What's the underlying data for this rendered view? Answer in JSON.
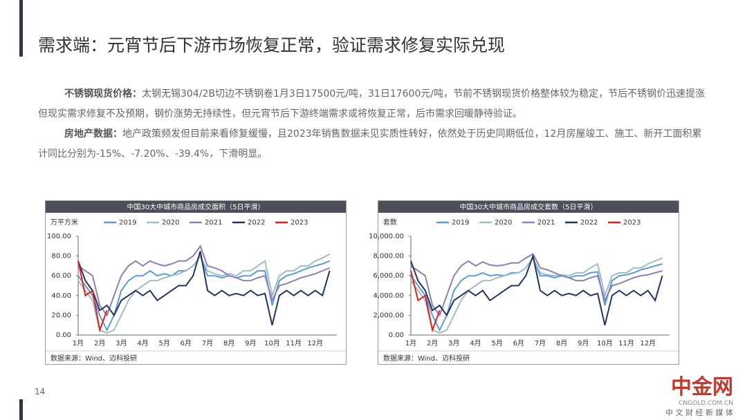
{
  "header": {
    "title": "需求端：元宵节后下游市场恢复正常，验证需求修复实际兑现"
  },
  "paragraphs": [
    {
      "lead": "不锈钢现货价格：",
      "text": "太钢无锡304/2B切边不锈钢卷1月3日17500元/吨，31日17600元/吨，节前不锈钢现货价格整体较为稳定，节后不锈钢价迅速提涨但现实需求修复不及预期，钢价涨势无持续性，但元宵节后下游终端需求或将恢复正常，后市需求回暖静待验证。"
    },
    {
      "lead": "房地产数据：",
      "text": "地产政策频发但目前来看修复缓慢，且2023年销售数据未见实质性转好，依然处于历史同期低位，12月房屋竣工、施工、新开工面积累计同比分别为-15%、-7.20%、-39.4%，下滑明显。"
    }
  ],
  "chart_data": [
    {
      "type": "line",
      "title": "中国30大中城市商品房成交面积（5日平滑）",
      "y_label": "万平方米",
      "source": "数据来源：Wind、迈科投研",
      "categories": [
        "1月",
        null,
        null,
        "2月",
        null,
        null,
        "3月",
        null,
        null,
        "4月",
        null,
        null,
        "5月",
        null,
        null,
        "6月",
        null,
        null,
        "7月",
        null,
        null,
        "8月",
        null,
        null,
        "9月",
        null,
        null,
        "10月",
        null,
        null,
        "11月",
        null,
        null,
        "12月",
        null,
        null
      ],
      "ylim": [
        0,
        100
      ],
      "yticks": [
        {
          "value": 0,
          "label": "0.00"
        },
        {
          "value": 20,
          "label": "20.00"
        },
        {
          "value": 40,
          "label": "40.00"
        },
        {
          "value": 60,
          "label": "60.00"
        },
        {
          "value": 80,
          "label": "80.00"
        },
        {
          "value": 100,
          "label": "100.00"
        }
      ],
      "series": [
        {
          "name": "2019",
          "color": "#5b9bd5",
          "values": [
            60,
            50,
            40,
            20,
            5,
            20,
            45,
            55,
            60,
            60,
            65,
            60,
            62,
            60,
            65,
            65,
            70,
            80,
            60,
            60,
            58,
            60,
            58,
            60,
            60,
            65,
            65,
            30,
            55,
            60,
            62,
            65,
            68,
            70,
            72,
            75
          ]
        },
        {
          "name": "2020",
          "color": "#9dbcc9",
          "values": [
            55,
            45,
            35,
            5,
            2,
            5,
            20,
            35,
            45,
            50,
            55,
            55,
            58,
            60,
            62,
            65,
            70,
            80,
            65,
            62,
            60,
            62,
            60,
            65,
            65,
            70,
            75,
            40,
            60,
            65,
            65,
            70,
            70,
            75,
            78,
            82
          ]
        },
        {
          "name": "2021",
          "color": "#8a7fb8",
          "values": [
            70,
            65,
            60,
            30,
            20,
            40,
            60,
            70,
            75,
            70,
            75,
            72,
            70,
            72,
            75,
            75,
            80,
            90,
            70,
            68,
            65,
            60,
            58,
            55,
            55,
            58,
            60,
            35,
            50,
            52,
            55,
            58,
            60,
            62,
            65,
            68
          ]
        },
        {
          "name": "2022",
          "color": "#1f3260",
          "values": [
            75,
            55,
            45,
            25,
            30,
            20,
            35,
            40,
            45,
            40,
            45,
            35,
            40,
            45,
            50,
            50,
            60,
            85,
            45,
            40,
            45,
            40,
            42,
            40,
            45,
            40,
            42,
            10,
            40,
            45,
            40,
            45,
            40,
            45,
            40,
            65
          ]
        },
        {
          "name": "2023",
          "color": "#e02020",
          "values": [
            75,
            40,
            45,
            5,
            25,
            null,
            null,
            null,
            null,
            null,
            null,
            null,
            null,
            null,
            null,
            null,
            null,
            null,
            null,
            null,
            null,
            null,
            null,
            null,
            null,
            null,
            null,
            null,
            null,
            null,
            null,
            null,
            null,
            null,
            null,
            null
          ]
        }
      ]
    },
    {
      "type": "line",
      "title": "中国30大中城市商品房成交套数（5日平滑）",
      "y_label": "套数",
      "source": "数据来源：Wind、迈科投研",
      "categories": [
        "1月",
        null,
        null,
        "2月",
        null,
        null,
        "3月",
        null,
        null,
        "4月",
        null,
        null,
        "5月",
        null,
        null,
        "6月",
        null,
        null,
        "7月",
        null,
        null,
        "8月",
        null,
        null,
        "9月",
        null,
        null,
        "10月",
        null,
        null,
        "11月",
        null,
        null,
        "12月",
        null,
        null
      ],
      "ylim": [
        0,
        10000
      ],
      "yticks": [
        {
          "value": 0,
          "label": "0.00"
        },
        {
          "value": 2000,
          "label": "2,000.00"
        },
        {
          "value": 4000,
          "label": "4,000.00"
        },
        {
          "value": 6000,
          "label": "6,000.00"
        },
        {
          "value": 8000,
          "label": "8,000.00"
        },
        {
          "value": 10000,
          "label": "10,000.00"
        }
      ],
      "series": [
        {
          "name": "2019",
          "color": "#5b9bd5",
          "values": [
            6000,
            5000,
            4000,
            2000,
            500,
            2000,
            4500,
            5500,
            6000,
            6000,
            6300,
            6000,
            6100,
            6000,
            6300,
            6300,
            6800,
            7800,
            6000,
            6000,
            5800,
            6000,
            5800,
            6000,
            6000,
            6300,
            6400,
            3000,
            5500,
            6000,
            6100,
            6300,
            6600,
            6800,
            7000,
            7200
          ]
        },
        {
          "name": "2020",
          "color": "#9dbcc9",
          "values": [
            5500,
            4500,
            3500,
            500,
            200,
            500,
            2000,
            3500,
            4500,
            5000,
            5500,
            5500,
            5800,
            6000,
            6200,
            6300,
            6800,
            7800,
            6300,
            6100,
            6000,
            6100,
            6000,
            6300,
            6300,
            6800,
            7200,
            4000,
            6000,
            6300,
            6300,
            6800,
            6800,
            7200,
            7500,
            7800
          ]
        },
        {
          "name": "2021",
          "color": "#8a7fb8",
          "values": [
            7000,
            6500,
            6000,
            3000,
            2000,
            4000,
            6000,
            7000,
            7500,
            7000,
            7400,
            7100,
            7000,
            7100,
            7300,
            7300,
            7800,
            8200,
            6800,
            6600,
            6300,
            6000,
            5800,
            5500,
            5500,
            5800,
            6000,
            3500,
            5000,
            5200,
            5500,
            5800,
            6000,
            6100,
            6300,
            6500
          ]
        },
        {
          "name": "2022",
          "color": "#1f3260",
          "values": [
            7500,
            5500,
            4500,
            2500,
            3000,
            2000,
            3500,
            4000,
            4500,
            4000,
            4500,
            3500,
            4000,
            4500,
            5000,
            5000,
            6000,
            8000,
            4500,
            4000,
            4500,
            4000,
            4200,
            4000,
            4500,
            4000,
            4200,
            1000,
            4000,
            4500,
            4000,
            4500,
            4000,
            4500,
            3500,
            6000
          ]
        },
        {
          "name": "2023",
          "color": "#e02020",
          "values": [
            6500,
            3500,
            4000,
            500,
            2500,
            null,
            null,
            null,
            null,
            null,
            null,
            null,
            null,
            null,
            null,
            null,
            null,
            null,
            null,
            null,
            null,
            null,
            null,
            null,
            null,
            null,
            null,
            null,
            null,
            null,
            null,
            null,
            null,
            null,
            null,
            null
          ]
        }
      ]
    }
  ],
  "footer": {
    "page": "14",
    "logo": "中金网",
    "logo_url": "CNGOLD.COM.CN",
    "logo_tag": "中 文 财 经 新 媒 体"
  }
}
